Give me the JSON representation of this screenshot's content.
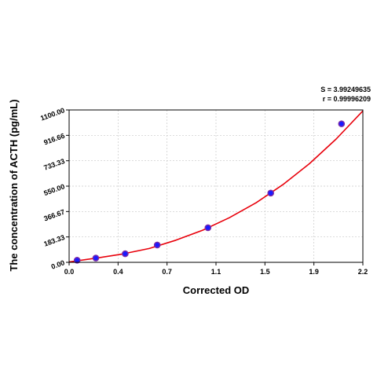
{
  "stats": {
    "s_text": "S = 3.99249635",
    "r_text": "r = 0.99996209"
  },
  "chart_data": {
    "type": "scatter",
    "xlabel": "Corrected OD",
    "ylabel": "The concentration of ACTH (pg/mL)",
    "xlim": [
      0.0,
      2.2
    ],
    "ylim": [
      0.0,
      1100.0
    ],
    "x_ticks": [
      "0.0",
      "0.4",
      "0.7",
      "1.1",
      "1.5",
      "1.9",
      "2.2"
    ],
    "y_ticks": [
      "0.00",
      "183.33",
      "366.67",
      "550.00",
      "733.33",
      "916.66",
      "1100.00"
    ],
    "grid": true,
    "points": [
      {
        "x": 0.06,
        "y": 15
      },
      {
        "x": 0.2,
        "y": 31
      },
      {
        "x": 0.42,
        "y": 62
      },
      {
        "x": 0.66,
        "y": 125
      },
      {
        "x": 1.04,
        "y": 250
      },
      {
        "x": 1.51,
        "y": 500
      },
      {
        "x": 2.04,
        "y": 1000
      }
    ],
    "fit_curve": {
      "color": "#e8000b",
      "x": [
        0.0,
        0.2,
        0.4,
        0.6,
        0.8,
        1.0,
        1.2,
        1.4,
        1.6,
        1.8,
        2.0,
        2.2
      ],
      "y": [
        3,
        30,
        60,
        100,
        160,
        232,
        322,
        430,
        560,
        712,
        890,
        1093
      ]
    },
    "point_color": "#1a1aff",
    "point_edge_color": "#7a2aa8",
    "axis_color": "#000000",
    "grid_color": "#c8c8c8"
  }
}
